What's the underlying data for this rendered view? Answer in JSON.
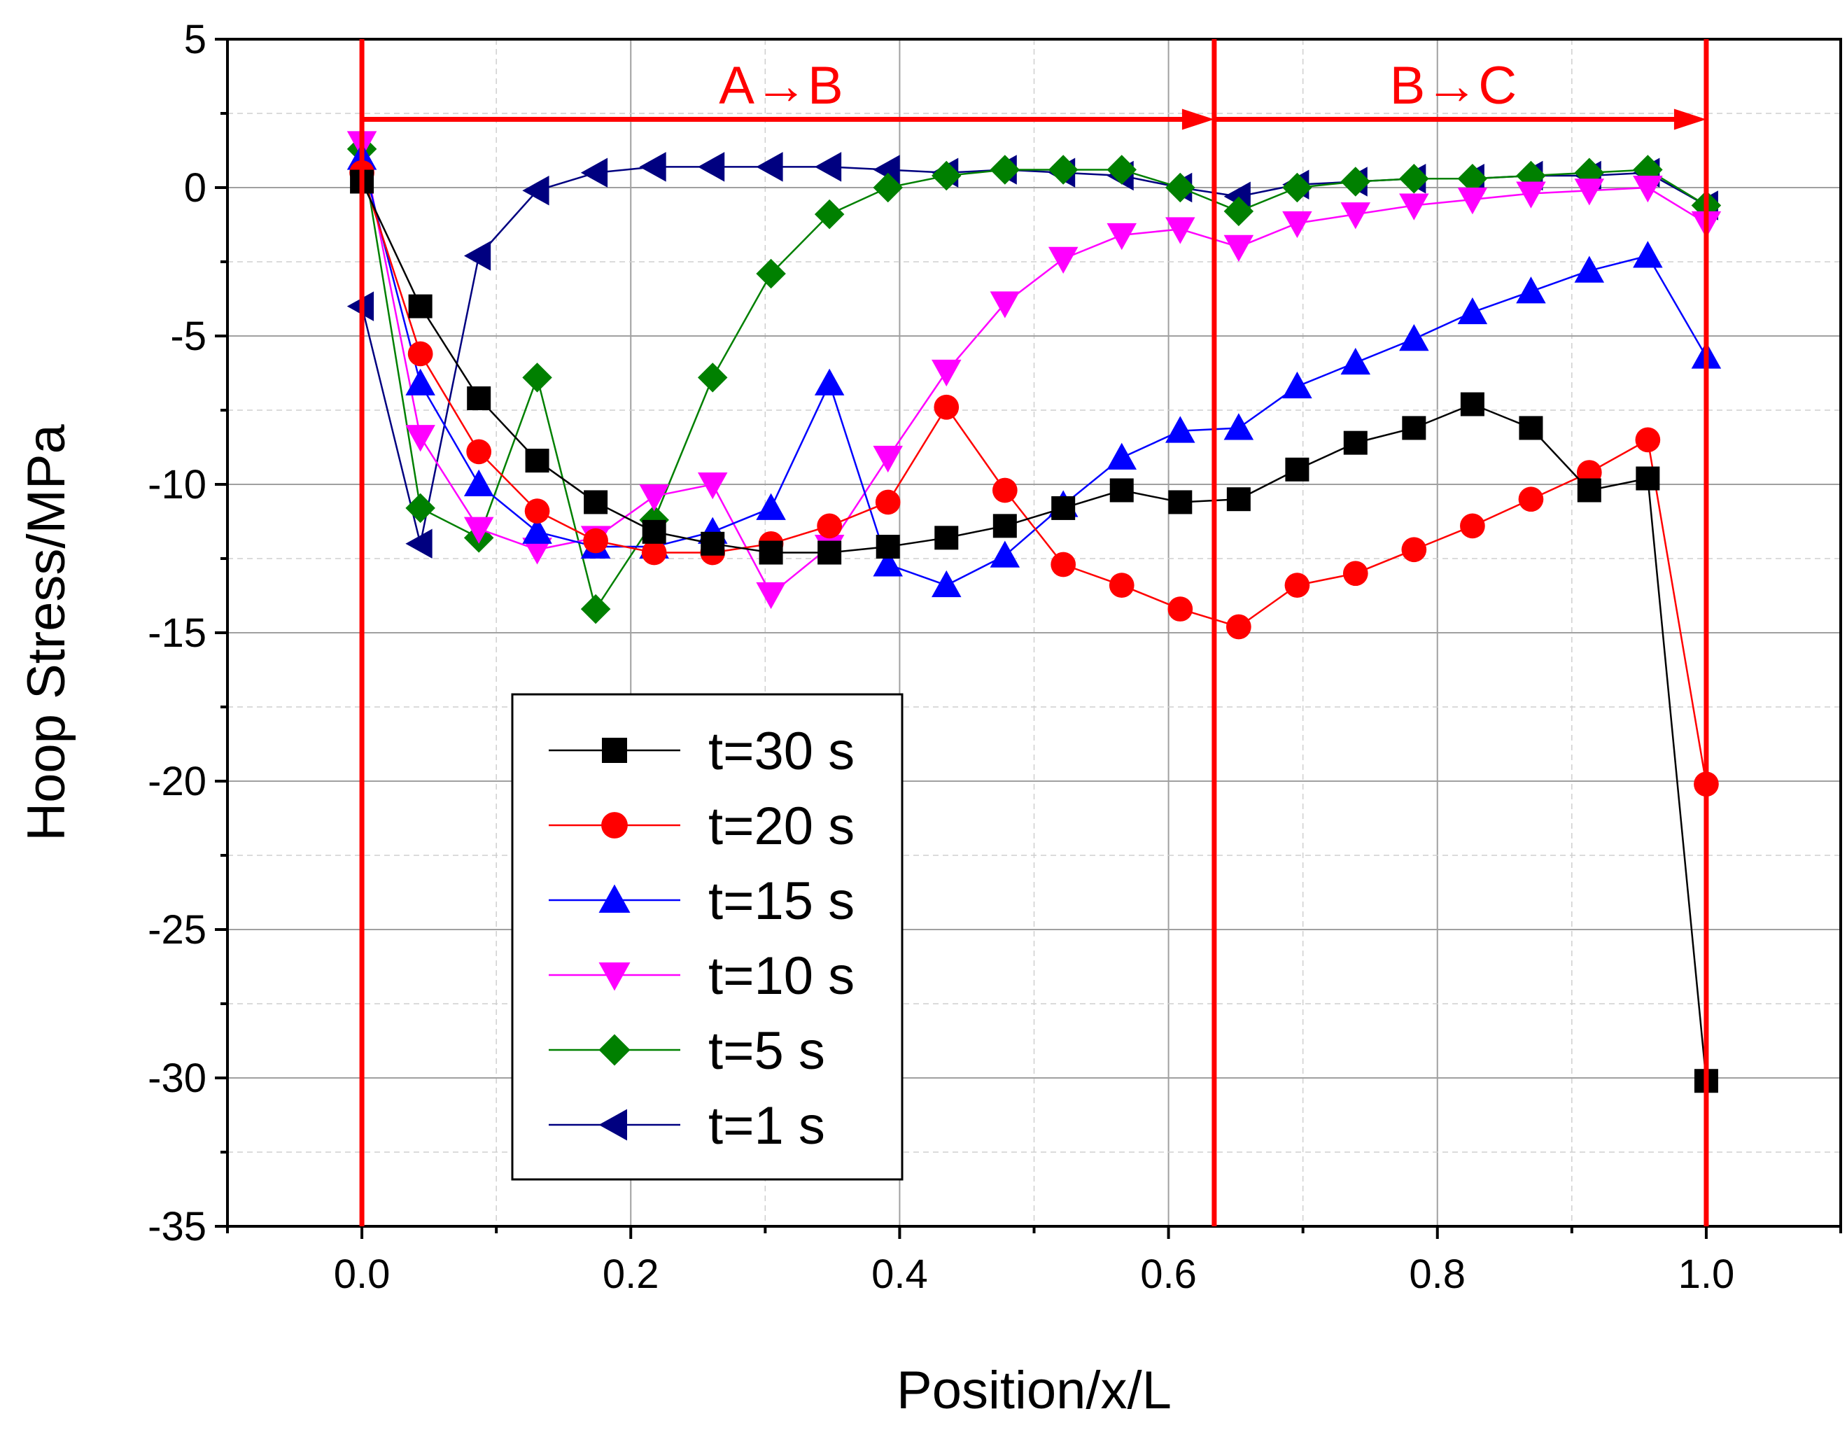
{
  "chart_data": {
    "type": "line",
    "xlabel": "Position/x/L",
    "ylabel": "Hoop Stress/MPa",
    "xlim": [
      -0.1,
      1.1
    ],
    "ylim": [
      -35,
      5
    ],
    "x_ticks": [
      0.0,
      0.2,
      0.4,
      0.6,
      0.8,
      1.0
    ],
    "x_tick_labels": [
      "0.0",
      "0.2",
      "0.4",
      "0.6",
      "0.8",
      "1.0"
    ],
    "y_ticks": [
      5,
      0,
      -5,
      -10,
      -15,
      -20,
      -25,
      -30,
      -35
    ],
    "y_tick_labels": [
      "5",
      "0",
      "-5",
      "-10",
      "-15",
      "-20",
      "-25",
      "-30",
      "-35"
    ],
    "grid": true,
    "legend_position": "bottom-left",
    "series": [
      {
        "name": "t=30 s",
        "color": "#000000",
        "marker": "square",
        "x": [
          0.0,
          0.0435,
          0.087,
          0.1304,
          0.1739,
          0.2174,
          0.2609,
          0.3043,
          0.3478,
          0.3913,
          0.4348,
          0.4783,
          0.5217,
          0.5652,
          0.6087,
          0.6522,
          0.6957,
          0.7391,
          0.7826,
          0.8261,
          0.8696,
          0.913,
          0.9565,
          1.0
        ],
        "y": [
          0.2,
          -4.0,
          -7.1,
          -9.2,
          -10.6,
          -11.6,
          -12.0,
          -12.3,
          -12.3,
          -12.1,
          -11.8,
          -11.4,
          -10.8,
          -10.2,
          -10.6,
          -10.5,
          -9.5,
          -8.6,
          -8.1,
          -7.3,
          -8.1,
          -10.2,
          -9.8,
          -30.1
        ]
      },
      {
        "name": "t=20 s",
        "color": "#ff0000",
        "marker": "circle",
        "x": [
          0.0,
          0.0435,
          0.087,
          0.1304,
          0.1739,
          0.2174,
          0.2609,
          0.3043,
          0.3478,
          0.3913,
          0.4348,
          0.4783,
          0.5217,
          0.5652,
          0.6087,
          0.6522,
          0.6957,
          0.7391,
          0.7826,
          0.8261,
          0.8696,
          0.913,
          0.9565,
          1.0
        ],
        "y": [
          0.5,
          -5.6,
          -8.9,
          -10.9,
          -11.9,
          -12.3,
          -12.3,
          -12.0,
          -11.4,
          -10.6,
          -7.4,
          -10.2,
          -12.7,
          -13.4,
          -14.2,
          -14.8,
          -13.4,
          -13.0,
          -12.2,
          -11.4,
          -10.5,
          -9.6,
          -8.5,
          -20.1
        ]
      },
      {
        "name": "t=15 s",
        "color": "#0000ff",
        "marker": "triangle-up",
        "x": [
          0.0,
          0.0435,
          0.087,
          0.1304,
          0.1739,
          0.2174,
          0.2609,
          0.3043,
          0.3478,
          0.3913,
          0.4348,
          0.4783,
          0.5217,
          0.5652,
          0.6087,
          0.6522,
          0.6957,
          0.7391,
          0.7826,
          0.8261,
          0.8696,
          0.913,
          0.9565,
          1.0
        ],
        "y": [
          1.0,
          -6.6,
          -10.0,
          -11.6,
          -12.1,
          -12.1,
          -11.6,
          -10.8,
          -6.6,
          -12.7,
          -13.4,
          -12.4,
          -10.7,
          -9.1,
          -8.2,
          -8.1,
          -6.7,
          -5.9,
          -5.1,
          -4.2,
          -3.5,
          -2.8,
          -2.3,
          -5.7
        ]
      },
      {
        "name": "t=10 s",
        "color": "#ff00ff",
        "marker": "triangle-down",
        "x": [
          0.0,
          0.0435,
          0.087,
          0.1304,
          0.1739,
          0.2174,
          0.2609,
          0.3043,
          0.3478,
          0.3913,
          0.4348,
          0.4783,
          0.5217,
          0.5652,
          0.6087,
          0.6522,
          0.6957,
          0.7391,
          0.7826,
          0.8261,
          0.8696,
          0.913,
          0.9565,
          1.0
        ],
        "y": [
          1.5,
          -8.4,
          -11.5,
          -12.2,
          -11.8,
          -10.4,
          -10.0,
          -13.7,
          -12.1,
          -9.1,
          -6.2,
          -3.9,
          -2.4,
          -1.6,
          -1.4,
          -2.0,
          -1.2,
          -0.9,
          -0.6,
          -0.4,
          -0.2,
          -0.1,
          0.0,
          -1.2
        ]
      },
      {
        "name": "t=5 s",
        "color": "#008000",
        "marker": "diamond",
        "x": [
          0.0,
          0.0435,
          0.087,
          0.1304,
          0.1739,
          0.2174,
          0.2609,
          0.3043,
          0.3478,
          0.3913,
          0.4348,
          0.4783,
          0.5217,
          0.5652,
          0.6087,
          0.6522,
          0.6957,
          0.7391,
          0.7826,
          0.8261,
          0.8696,
          0.913,
          0.9565,
          1.0
        ],
        "y": [
          1.3,
          -10.8,
          -11.8,
          -6.4,
          -14.2,
          -11.2,
          -6.4,
          -2.9,
          -0.9,
          0.0,
          0.4,
          0.6,
          0.6,
          0.6,
          0.0,
          -0.8,
          0.0,
          0.2,
          0.3,
          0.3,
          0.4,
          0.5,
          0.6,
          -0.6
        ]
      },
      {
        "name": "t=1 s",
        "color": "#000080",
        "marker": "triangle-left",
        "x": [
          0.0,
          0.0435,
          0.087,
          0.1304,
          0.1739,
          0.2174,
          0.2609,
          0.3043,
          0.3478,
          0.3913,
          0.4348,
          0.4783,
          0.5217,
          0.5652,
          0.6087,
          0.6522,
          0.6957,
          0.7391,
          0.7826,
          0.8261,
          0.8696,
          0.913,
          0.9565,
          1.0
        ],
        "y": [
          -4.0,
          -12.0,
          -2.3,
          -0.1,
          0.5,
          0.7,
          0.7,
          0.7,
          0.7,
          0.6,
          0.5,
          0.6,
          0.5,
          0.4,
          0.0,
          -0.3,
          0.1,
          0.2,
          0.3,
          0.3,
          0.4,
          0.4,
          0.5,
          -0.6
        ]
      }
    ],
    "annotations": {
      "color": "#ff0000",
      "vertical_lines_x": [
        0.0,
        0.634,
        1.0
      ],
      "arrows": [
        {
          "from_x": 0.0,
          "to_x": 0.634,
          "y": 2.3,
          "label": "A→B"
        },
        {
          "from_x": 0.634,
          "to_x": 1.0,
          "y": 2.3,
          "label": "B→C"
        }
      ]
    }
  }
}
